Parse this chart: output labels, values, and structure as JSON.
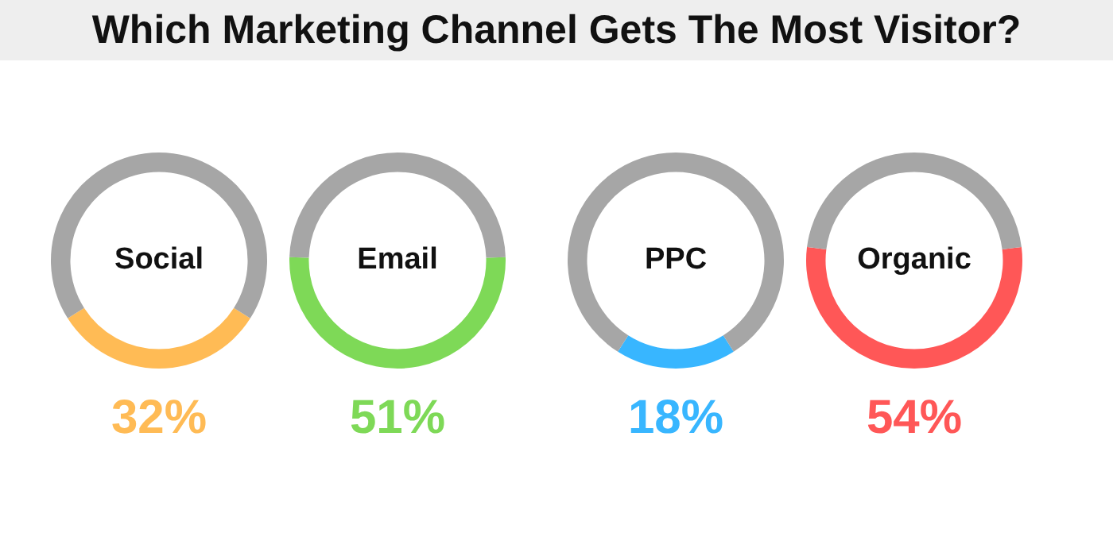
{
  "chart_data": [
    {
      "type": "other",
      "title": "Which Marketing Channel Gets The Most Visitor?"
    },
    {
      "type": "donut",
      "title": "Social",
      "categories": [
        null,
        null
      ],
      "values": [
        32,
        68
      ],
      "colors": [
        "#ffbb55",
        "#a6a6a6"
      ],
      "value_labels": [
        "32%",
        null
      ]
    },
    {
      "type": "donut",
      "title": "Email",
      "categories": [
        null,
        null
      ],
      "values": [
        51,
        49
      ],
      "colors": [
        "#7ed957",
        "#a6a6a6"
      ],
      "value_labels": [
        "51%",
        null
      ]
    },
    {
      "type": "donut",
      "title": "PPC",
      "categories": [
        null,
        null
      ],
      "values": [
        18,
        82
      ],
      "colors": [
        "#38b6ff",
        "#a6a6a6"
      ],
      "value_labels": [
        "18%",
        null
      ]
    },
    {
      "type": "donut",
      "title": "Organic",
      "categories": [
        null,
        null
      ],
      "values": [
        54,
        46
      ],
      "colors": [
        "#ff5757",
        "#a6a6a6"
      ],
      "value_labels": [
        "54%",
        null
      ]
    }
  ]
}
